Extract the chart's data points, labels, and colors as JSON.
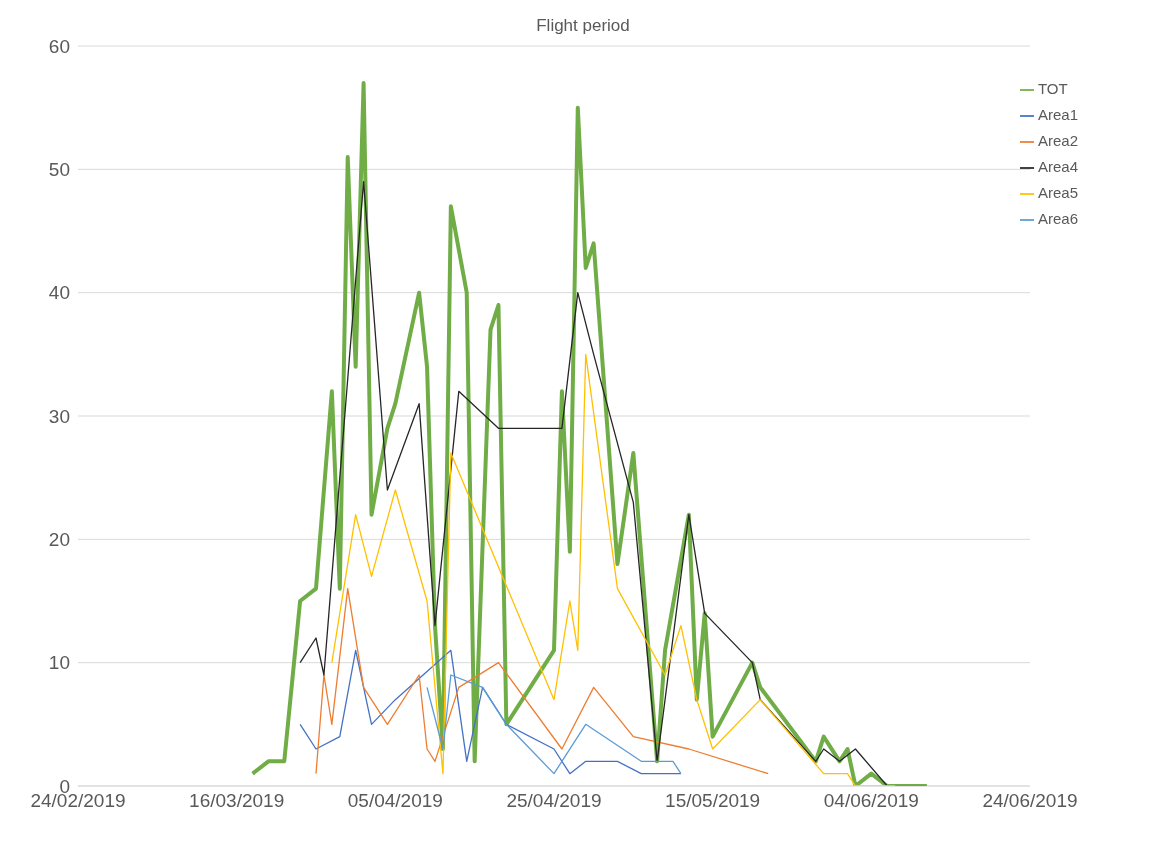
{
  "chart_data": {
    "type": "line",
    "title": "Flight period",
    "xlim": [
      "2019-02-24",
      "2019-06-24"
    ],
    "xticks": [
      {
        "value": "2019-02-24",
        "label": "24/02/2019"
      },
      {
        "value": "2019-03-16",
        "label": "16/03/2019"
      },
      {
        "value": "2019-04-05",
        "label": "05/04/2019"
      },
      {
        "value": "2019-04-25",
        "label": "25/04/2019"
      },
      {
        "value": "2019-05-15",
        "label": "15/05/2019"
      },
      {
        "value": "2019-06-04",
        "label": "04/06/2019"
      },
      {
        "value": "2019-06-24",
        "label": "24/06/2019"
      }
    ],
    "ylim": [
      0,
      60
    ],
    "yticks": [
      0,
      10,
      20,
      30,
      40,
      50,
      60
    ],
    "grid": "y",
    "legend": "top right",
    "marker": "none",
    "line_style": "solid",
    "series": [
      {
        "name": "TOT",
        "color": "#70ad47",
        "x": [
          "2019-03-18",
          "2019-03-20",
          "2019-03-22",
          "2019-03-24",
          "2019-03-26",
          "2019-03-28",
          "2019-03-29",
          "2019-03-30",
          "2019-03-31",
          "2019-04-01",
          "2019-04-02",
          "2019-04-04",
          "2019-04-05",
          "2019-04-08",
          "2019-04-09",
          "2019-04-10",
          "2019-04-11",
          "2019-04-12",
          "2019-04-14",
          "2019-04-15",
          "2019-04-17",
          "2019-04-18",
          "2019-04-19",
          "2019-04-25",
          "2019-04-26",
          "2019-04-27",
          "2019-04-28",
          "2019-04-29",
          "2019-04-30",
          "2019-05-03",
          "2019-05-05",
          "2019-05-08",
          "2019-05-09",
          "2019-05-12",
          "2019-05-13",
          "2019-05-14",
          "2019-05-15",
          "2019-05-20",
          "2019-05-21",
          "2019-05-28",
          "2019-05-29",
          "2019-05-31",
          "2019-06-01",
          "2019-06-02",
          "2019-06-04",
          "2019-06-06",
          "2019-06-11"
        ],
        "values": [
          1,
          2,
          2,
          15,
          16,
          32,
          16,
          51,
          34,
          57,
          22,
          29,
          31,
          40,
          34,
          13,
          3,
          47,
          40,
          2,
          37,
          39,
          5,
          11,
          32,
          19,
          55,
          42,
          44,
          18,
          27,
          2,
          11,
          22,
          7,
          14,
          4,
          10,
          8,
          2,
          4,
          2,
          3,
          0,
          1,
          0,
          0
        ]
      },
      {
        "name": "Area1",
        "color": "#4472c4",
        "x": [
          "2019-03-24",
          "2019-03-26",
          "2019-03-29",
          "2019-03-31",
          "2019-04-02",
          "2019-04-05",
          "2019-04-12",
          "2019-04-14",
          "2019-04-16",
          "2019-04-19",
          "2019-04-25",
          "2019-04-27",
          "2019-04-29",
          "2019-05-03",
          "2019-05-06",
          "2019-05-11"
        ],
        "values": [
          5,
          3,
          4,
          11,
          5,
          7,
          11,
          2,
          8,
          5,
          3,
          1,
          2,
          2,
          1,
          1
        ]
      },
      {
        "name": "Area2",
        "color": "#ed7d31",
        "x": [
          "2019-03-26",
          "2019-03-27",
          "2019-03-28",
          "2019-03-30",
          "2019-04-01",
          "2019-04-04",
          "2019-04-08",
          "2019-04-09",
          "2019-04-10",
          "2019-04-11",
          "2019-04-13",
          "2019-04-18",
          "2019-04-26",
          "2019-04-30",
          "2019-05-05",
          "2019-05-12",
          "2019-05-22"
        ],
        "values": [
          1,
          9,
          5,
          16,
          8,
          5,
          9,
          3,
          2,
          4,
          8,
          10,
          3,
          8,
          4,
          3,
          1
        ]
      },
      {
        "name": "Area4",
        "color": "#262626",
        "x": [
          "2019-03-24",
          "2019-03-26",
          "2019-03-27",
          "2019-04-01",
          "2019-04-04",
          "2019-04-08",
          "2019-04-10",
          "2019-04-13",
          "2019-04-18",
          "2019-04-26",
          "2019-04-28",
          "2019-04-30",
          "2019-05-05",
          "2019-05-08",
          "2019-05-12",
          "2019-05-14",
          "2019-05-20",
          "2019-05-21",
          "2019-05-28",
          "2019-05-29",
          "2019-05-31",
          "2019-06-02",
          "2019-06-06",
          "2019-06-11"
        ],
        "values": [
          10,
          12,
          9,
          49,
          24,
          31,
          13,
          32,
          29,
          29,
          40,
          35,
          23,
          2,
          22,
          14,
          10,
          7,
          2,
          3,
          2,
          3,
          0,
          0
        ]
      },
      {
        "name": "Area5",
        "color": "#ffc000",
        "x": [
          "2019-03-28",
          "2019-03-31",
          "2019-04-02",
          "2019-04-05",
          "2019-04-09",
          "2019-04-11",
          "2019-04-12",
          "2019-04-25",
          "2019-04-27",
          "2019-04-28",
          "2019-04-29",
          "2019-05-03",
          "2019-05-09",
          "2019-05-11",
          "2019-05-13",
          "2019-05-15",
          "2019-05-21",
          "2019-05-29",
          "2019-06-01",
          "2019-06-02",
          "2019-06-07"
        ],
        "values": [
          10,
          22,
          17,
          24,
          15,
          1,
          27,
          7,
          15,
          11,
          35,
          16,
          9,
          13,
          7,
          3,
          7,
          1,
          1,
          0,
          0
        ]
      },
      {
        "name": "Area6",
        "color": "#5b9bd5",
        "x": [
          "2019-04-09",
          "2019-04-11",
          "2019-04-12",
          "2019-04-16",
          "2019-04-19",
          "2019-04-25",
          "2019-04-29",
          "2019-05-06",
          "2019-05-10",
          "2019-05-11"
        ],
        "values": [
          8,
          3,
          9,
          8,
          5,
          1,
          5,
          2,
          2,
          1
        ]
      }
    ]
  }
}
